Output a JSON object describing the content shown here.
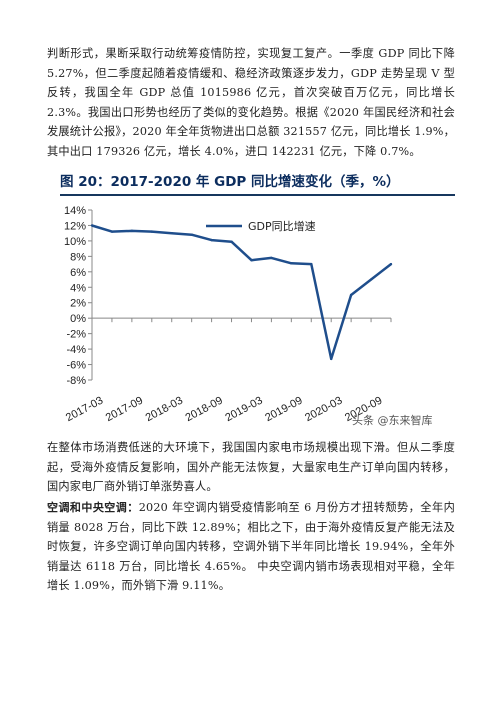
{
  "paragraphs": {
    "p1": "判断形式，果断采取行动统筹疫情防控，实现复工复产。一季度 GDP 同比下降 5.27%，但二季度起随着疫情缓和、稳经济政策逐步发力，GDP 走势呈现 V 型反转，我国全年 GDP 总值 1015986 亿元，首次突破百万亿元，同比增长 2.3%。我国出口形势也经历了类似的变化趋势。根据《2020 年国民经济和社会发展统计公报》，2020 年全年货物进出口总额 321557 亿元，同比增长 1.9%，其中出口 179326 亿元，增长 4.0%，进口 142231 亿元，下降 0.7%。",
    "p2": "在整体市场消费低迷的大环境下，我国国内家电市场规模出现下滑。但从二季度起，受海外疫情反复影响，国外产能无法恢复，大量家电生产订单向国内转移，国内家电厂商外销订单涨势喜人。",
    "p3_heading": "空调和中央空调：",
    "p3_body": "2020 年空调内销受疫情影响至 6 月份方才扭转颓势，全年内销量 8028 万台，同比下跌 12.89%；相比之下，由于海外疫情反复产能无法及时恢复，许多空调订单向国内转移，空调外销下半年同比增长 19.94%，全年外销量达 6118 万台，同比增长 4.65%。 中央空调内销市场表现相对平稳，全年增长 1.09%，而外销下滑 9.11%。"
  },
  "figure": {
    "title": "图 20：2017-2020 年 GDP 同比增速变化（季，%）"
  },
  "watermark": "头条 @东来智库",
  "colors": {
    "series": "#1f4e8c",
    "title": "#0c2d5e"
  },
  "chart_data": {
    "type": "line",
    "title": "",
    "ylim": [
      -8,
      14
    ],
    "yticks": [
      "14%",
      "12%",
      "10%",
      "8%",
      "6%",
      "4%",
      "2%",
      "0%",
      "-2%",
      "-4%",
      "-6%",
      "-8%"
    ],
    "xticks": [
      "2017-03",
      "2017-09",
      "2018-03",
      "2018-09",
      "2019-03",
      "2019-09",
      "2020-03",
      "2020-09"
    ],
    "x": [
      "2017-03",
      "2017-06",
      "2017-09",
      "2017-12",
      "2018-03",
      "2018-06",
      "2018-09",
      "2018-12",
      "2019-03",
      "2019-06",
      "2019-09",
      "2019-12",
      "2020-03",
      "2020-06",
      "2020-09",
      "2020-12"
    ],
    "series": [
      {
        "name": "GDP同比增速",
        "values": [
          12.0,
          11.2,
          11.3,
          11.2,
          11.0,
          10.8,
          10.1,
          9.9,
          7.5,
          7.8,
          7.1,
          7.0,
          -5.27,
          3.0,
          5.0,
          7.0
        ]
      }
    ],
    "legend": "top"
  }
}
